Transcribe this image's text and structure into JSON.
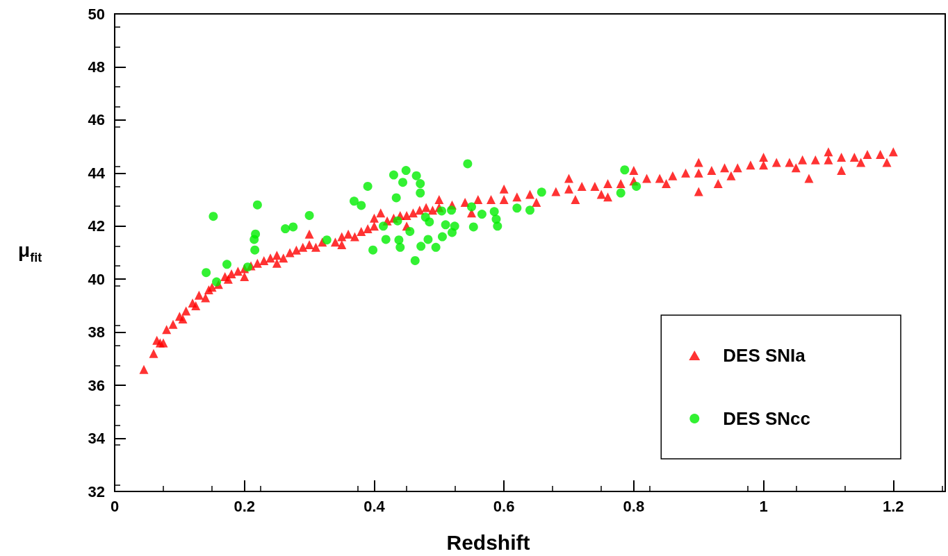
{
  "chart_data": {
    "type": "scatter",
    "xlabel": "Redshift",
    "ylabel": "μ$_{fit}$",
    "xlim": [
      0,
      1.28
    ],
    "ylim": [
      32,
      50
    ],
    "xticks": [
      0,
      0.2,
      0.4,
      0.6,
      0.8,
      1,
      1.2
    ],
    "yticks": [
      32,
      34,
      36,
      38,
      40,
      42,
      44,
      46,
      48,
      50
    ],
    "grid": false,
    "legend": "bottom right",
    "series": [
      {
        "name": "DES SNIa",
        "color": "#ff0000",
        "marker": "triangle",
        "x": [
          0.045,
          0.06,
          0.065,
          0.07,
          0.075,
          0.08,
          0.09,
          0.1,
          0.105,
          0.11,
          0.12,
          0.125,
          0.13,
          0.14,
          0.145,
          0.15,
          0.155,
          0.16,
          0.17,
          0.175,
          0.18,
          0.19,
          0.2,
          0.2,
          0.21,
          0.22,
          0.23,
          0.24,
          0.25,
          0.26,
          0.27,
          0.28,
          0.29,
          0.3,
          0.31,
          0.32,
          0.33,
          0.34,
          0.35,
          0.36,
          0.37,
          0.38,
          0.39,
          0.4,
          0.41,
          0.42,
          0.43,
          0.44,
          0.45,
          0.46,
          0.47,
          0.48,
          0.49,
          0.5,
          0.52,
          0.54,
          0.56,
          0.58,
          0.6,
          0.62,
          0.64,
          0.66,
          0.68,
          0.7,
          0.72,
          0.74,
          0.76,
          0.78,
          0.8,
          0.82,
          0.84,
          0.86,
          0.88,
          0.9,
          0.92,
          0.94,
          0.96,
          0.98,
          1.0,
          1.02,
          1.04,
          1.06,
          1.08,
          1.1,
          1.12,
          1.14,
          1.16,
          1.18,
          1.2,
          0.25,
          0.35,
          0.45,
          0.55,
          0.65,
          0.75,
          0.85,
          0.95,
          1.05,
          1.15,
          0.3,
          0.4,
          0.5,
          0.6,
          0.7,
          0.8,
          0.9,
          1.0,
          1.1,
          0.71,
          0.76,
          0.9,
          0.93,
          1.07,
          1.12,
          1.19
        ],
        "values": [
          36.6,
          37.2,
          37.7,
          37.6,
          37.6,
          38.1,
          38.3,
          38.6,
          38.5,
          38.8,
          39.1,
          39.0,
          39.4,
          39.3,
          39.6,
          39.7,
          null,
          39.8,
          40.1,
          40.0,
          40.2,
          40.3,
          40.4,
          40.1,
          40.5,
          40.6,
          40.7,
          40.8,
          40.9,
          40.8,
          41.0,
          41.1,
          41.2,
          41.3,
          41.2,
          41.4,
          null,
          41.4,
          41.6,
          41.7,
          41.6,
          41.8,
          41.9,
          42.0,
          42.5,
          42.2,
          42.3,
          42.4,
          42.4,
          42.5,
          42.6,
          42.7,
          42.6,
          42.7,
          42.8,
          42.9,
          43.0,
          43.0,
          43.0,
          43.1,
          43.2,
          null,
          43.3,
          43.4,
          43.5,
          43.5,
          43.6,
          43.6,
          43.7,
          43.8,
          43.8,
          43.9,
          44.0,
          44.0,
          44.1,
          44.2,
          44.2,
          44.3,
          44.3,
          44.4,
          44.4,
          44.5,
          44.5,
          44.5,
          44.6,
          44.6,
          44.7,
          44.7,
          44.8,
          40.6,
          41.3,
          42.0,
          42.5,
          42.9,
          43.2,
          43.6,
          43.9,
          44.2,
          44.4,
          41.7,
          42.3,
          43.0,
          43.4,
          43.8,
          44.1,
          44.4,
          44.6,
          44.8,
          43.0,
          43.1,
          43.3,
          43.6,
          43.8,
          44.1,
          44.4
        ]
      },
      {
        "name": "DES SNcc",
        "color": "#00ee00",
        "marker": "circle",
        "x": [
          0.141,
          0.152,
          0.157,
          0.173,
          0.205,
          0.215,
          0.216,
          0.217,
          0.22,
          0.263,
          0.275,
          0.3,
          0.327,
          0.369,
          0.38,
          0.39,
          0.398,
          0.414,
          0.418,
          0.43,
          0.434,
          0.436,
          0.438,
          0.44,
          0.444,
          0.449,
          0.455,
          0.463,
          0.465,
          0.471,
          0.471,
          0.472,
          0.479,
          0.483,
          0.485,
          0.495,
          0.504,
          0.505,
          0.51,
          0.519,
          0.52,
          0.524,
          0.544,
          0.55,
          0.553,
          0.566,
          0.585,
          0.588,
          0.59,
          0.62,
          0.64,
          0.658,
          0.78,
          0.786,
          0.804
        ],
        "values": [
          40.25,
          42.37,
          39.9,
          40.56,
          40.46,
          41.5,
          41.1,
          41.7,
          42.8,
          41.9,
          41.97,
          42.4,
          41.48,
          42.94,
          42.78,
          43.5,
          41.1,
          42.0,
          41.5,
          43.93,
          43.07,
          42.2,
          41.48,
          41.2,
          43.65,
          44.1,
          41.8,
          40.7,
          43.9,
          43.6,
          43.25,
          41.24,
          42.34,
          41.5,
          42.16,
          41.2,
          42.57,
          41.6,
          42.05,
          42.6,
          41.76,
          42.0,
          44.35,
          42.73,
          41.97,
          42.45,
          42.55,
          42.26,
          42.0,
          42.68,
          42.6,
          43.28,
          43.25,
          44.12,
          43.5
        ]
      }
    ]
  }
}
